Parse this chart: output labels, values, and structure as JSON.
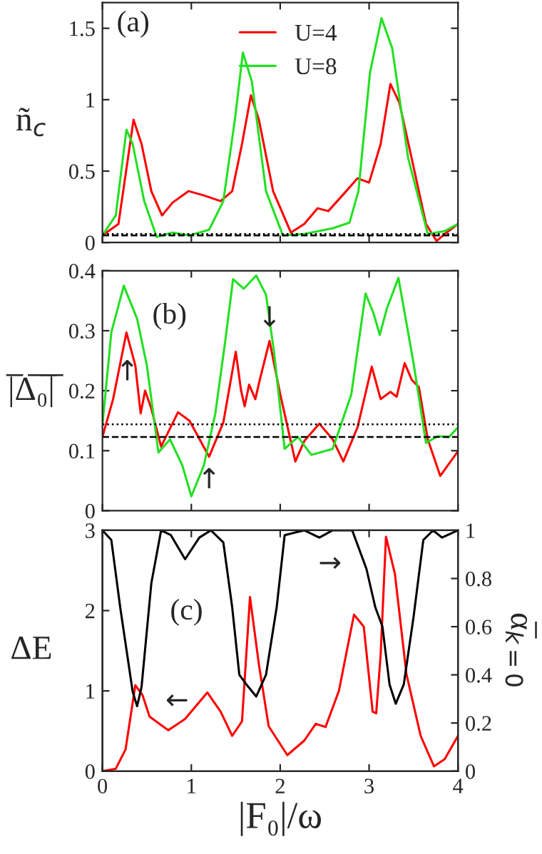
{
  "chart_data": [
    {
      "type": "line",
      "xlim": [
        0,
        4
      ],
      "xticks": [
        0,
        1,
        2,
        3,
        4
      ],
      "ylim": [
        0,
        1.68
      ],
      "yticks": [
        0,
        0.5,
        1,
        1.5
      ],
      "tick_labels": "y",
      "ylabel": "ñ$_{c}$",
      "legend": "top right",
      "grid": false,
      "annotations": [
        "(a)"
      ],
      "ref_lines": [
        {
          "axis": "y",
          "value": 0.05,
          "color": "#000000",
          "line_style": "dashed"
        },
        {
          "axis": "y",
          "value": 0.06,
          "color": "#000000",
          "line_style": "dotted"
        }
      ],
      "series": [
        {
          "name": "U=4",
          "color": "#ff0000",
          "x": [
            0,
            0.18,
            0.35,
            0.44,
            0.55,
            0.67,
            0.79,
            0.97,
            1.14,
            1.33,
            1.46,
            1.57,
            1.67,
            1.76,
            1.92,
            2.12,
            2.27,
            2.42,
            2.54,
            2.7,
            2.87,
            3.0,
            3.13,
            3.24,
            3.34,
            3.5,
            3.64,
            3.76,
            3.85,
            4.0
          ],
          "values": [
            0.05,
            0.13,
            0.86,
            0.69,
            0.36,
            0.19,
            0.28,
            0.36,
            0.33,
            0.29,
            0.36,
            0.69,
            1.03,
            0.86,
            0.36,
            0.07,
            0.13,
            0.24,
            0.22,
            0.33,
            0.45,
            0.42,
            0.69,
            1.11,
            0.98,
            0.53,
            0.13,
            0.01,
            0.06,
            0.13
          ]
        },
        {
          "name": "U=8",
          "color": "#22e022",
          "x": [
            0,
            0.15,
            0.27,
            0.34,
            0.47,
            0.61,
            0.79,
            0.98,
            1.2,
            1.36,
            1.49,
            1.58,
            1.68,
            1.84,
            2.03,
            2.27,
            2.59,
            2.78,
            2.88,
            3.01,
            3.14,
            3.26,
            3.44,
            3.66,
            3.85,
            4.0
          ],
          "values": [
            0.05,
            0.19,
            0.79,
            0.69,
            0.29,
            0.04,
            0.07,
            0.05,
            0.09,
            0.29,
            0.86,
            1.33,
            1.13,
            0.36,
            0.05,
            0.06,
            0.1,
            0.14,
            0.36,
            1.19,
            1.57,
            1.36,
            0.59,
            0.06,
            0.08,
            0.13
          ]
        }
      ]
    },
    {
      "type": "line",
      "xlim": [
        0,
        4
      ],
      "xticks": [
        0,
        1,
        2,
        3,
        4
      ],
      "ylim": [
        0,
        0.4
      ],
      "yticks": [
        0,
        0.1,
        0.2,
        0.3,
        0.4
      ],
      "tick_labels": "y",
      "ylabel": "|̅Δ̅₀̅|̅",
      "grid": false,
      "annotations": [
        "(b)",
        "↑",
        "↑",
        "↓"
      ],
      "ref_lines": [
        {
          "axis": "y",
          "value": 0.144,
          "color": "#000000",
          "line_style": "dotted"
        },
        {
          "axis": "y",
          "value": 0.123,
          "color": "#000000",
          "line_style": "dashed"
        }
      ],
      "series": [
        {
          "color": "#ff0000",
          "x": [
            0,
            0.12,
            0.27,
            0.37,
            0.43,
            0.48,
            0.55,
            0.66,
            0.85,
            0.98,
            1.2,
            1.36,
            1.5,
            1.56,
            1.6,
            1.65,
            1.72,
            1.77,
            1.88,
            2.0,
            2.17,
            2.27,
            2.44,
            2.59,
            2.71,
            2.87,
            3.03,
            3.13,
            3.24,
            3.31,
            3.4,
            3.48,
            3.56,
            3.66,
            3.8,
            4.0
          ],
          "values": [
            0.123,
            0.186,
            0.297,
            0.242,
            0.162,
            0.2,
            0.17,
            0.107,
            0.164,
            0.15,
            0.09,
            0.147,
            0.265,
            0.2,
            0.174,
            0.21,
            0.186,
            0.218,
            0.283,
            0.194,
            0.082,
            0.116,
            0.145,
            0.119,
            0.082,
            0.139,
            0.24,
            0.186,
            0.198,
            0.19,
            0.246,
            0.218,
            0.206,
            0.119,
            0.058,
            0.099
          ]
        },
        {
          "color": "#22e022",
          "x": [
            0,
            0.1,
            0.24,
            0.39,
            0.5,
            0.63,
            0.76,
            0.9,
            1.0,
            1.14,
            1.27,
            1.38,
            1.47,
            1.59,
            1.73,
            1.84,
            1.93,
            2.05,
            2.2,
            2.35,
            2.59,
            2.8,
            2.96,
            3.05,
            3.12,
            3.2,
            3.33,
            3.5,
            3.64,
            3.77,
            3.9,
            4.0
          ],
          "values": [
            0.143,
            0.297,
            0.375,
            0.32,
            0.242,
            0.097,
            0.119,
            0.075,
            0.024,
            0.075,
            0.162,
            0.281,
            0.386,
            0.37,
            0.392,
            0.36,
            0.265,
            0.103,
            0.123,
            0.093,
            0.103,
            0.194,
            0.362,
            0.329,
            0.293,
            0.337,
            0.388,
            0.246,
            0.113,
            0.124,
            0.123,
            0.139
          ]
        }
      ]
    },
    {
      "type": "line",
      "xlim": [
        0,
        4
      ],
      "xticks": [
        0,
        1,
        2,
        3,
        4
      ],
      "ylim": [
        0,
        3
      ],
      "yticks": [
        0,
        1,
        2,
        3
      ],
      "y2lim": [
        0,
        1
      ],
      "y2ticks": [
        0,
        0.2,
        0.4,
        0.6,
        0.8,
        1
      ],
      "xlabel": "|F₀|/ω",
      "ylabel": "ΔE",
      "y2label": "α̅$_{k=0}$",
      "grid": false,
      "annotations": [
        "(c)",
        "→",
        "←"
      ],
      "series": [
        {
          "color": "#ff0000",
          "axis": "y",
          "x": [
            0,
            0.15,
            0.26,
            0.37,
            0.45,
            0.53,
            0.74,
            0.93,
            1.18,
            1.33,
            1.46,
            1.57,
            1.66,
            1.76,
            1.87,
            2.08,
            2.27,
            2.4,
            2.51,
            2.66,
            2.83,
            2.94,
            3.04,
            3.08,
            3.13,
            3.19,
            3.29,
            3.42,
            3.58,
            3.73,
            3.85,
            4.0
          ],
          "values": [
            0,
            0.03,
            0.27,
            1.07,
            0.95,
            0.68,
            0.51,
            0.65,
            0.98,
            0.74,
            0.44,
            0.62,
            2.17,
            1.33,
            0.56,
            0.2,
            0.38,
            0.59,
            0.55,
            1.0,
            1.95,
            1.8,
            0.74,
            0.72,
            1.45,
            2.92,
            2.46,
            1.21,
            0.44,
            0.06,
            0.15,
            0.44
          ]
        },
        {
          "color": "#000000",
          "axis": "y2",
          "x": [
            0,
            0.1,
            0.2,
            0.34,
            0.39,
            0.44,
            0.55,
            0.66,
            0.77,
            0.93,
            1.09,
            1.22,
            1.36,
            1.46,
            1.54,
            1.62,
            1.73,
            1.84,
            1.96,
            2.05,
            2.16,
            2.27,
            2.44,
            2.59,
            2.81,
            2.97,
            3.07,
            3.15,
            3.23,
            3.3,
            3.39,
            3.5,
            3.61,
            3.72,
            3.82,
            4.0
          ],
          "values": [
            1,
            0.96,
            0.68,
            0.33,
            0.27,
            0.35,
            0.78,
            1.0,
            0.98,
            0.88,
            0.97,
            1.0,
            0.95,
            0.68,
            0.4,
            0.36,
            0.31,
            0.4,
            0.68,
            0.98,
            0.99,
            1.0,
            0.97,
            1.0,
            1.0,
            0.84,
            0.68,
            0.6,
            0.36,
            0.28,
            0.36,
            0.64,
            0.96,
            1.0,
            0.97,
            1.0
          ]
        }
      ]
    }
  ]
}
